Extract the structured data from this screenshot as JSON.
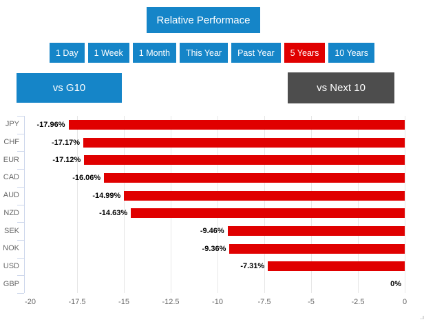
{
  "header": {
    "title": "Relative Performace",
    "tabs": [
      {
        "label": "1 Day",
        "selected": false
      },
      {
        "label": "1 Week",
        "selected": false
      },
      {
        "label": "1 Month",
        "selected": false
      },
      {
        "label": "This Year",
        "selected": false
      },
      {
        "label": "Past Year",
        "selected": false
      },
      {
        "label": "5 Years",
        "selected": true
      },
      {
        "label": "10 Years",
        "selected": false
      }
    ],
    "toggles": [
      {
        "label": "vs G10",
        "selected": true
      },
      {
        "label": "vs Next 10",
        "selected": false
      }
    ]
  },
  "colors": {
    "accent_blue": "#1585c8",
    "selected_red": "#e00000",
    "bar_red": "#e00000",
    "dark_gray": "#4d4d4d",
    "axis_line": "#ccd6eb",
    "gridline": "#e6e6e6",
    "label_gray": "#666666",
    "data_label_black": "#000000"
  },
  "chart_data": {
    "type": "bar",
    "orientation": "horizontal",
    "title": "Relative Performace",
    "categories": [
      "JPY",
      "CHF",
      "EUR",
      "CAD",
      "AUD",
      "NZD",
      "SEK",
      "NOK",
      "USD",
      "GBP"
    ],
    "values": [
      -17.96,
      -17.17,
      -17.12,
      -16.06,
      -14.99,
      -14.63,
      -9.46,
      -9.36,
      -7.31,
      0
    ],
    "data_labels": [
      "-17.96%",
      "-17.17%",
      "-17.12%",
      "-16.06%",
      "-14.99%",
      "-14.63%",
      "-9.46%",
      "-9.36%",
      "-7.31%",
      "0%"
    ],
    "xlabel": "",
    "ylabel": "",
    "xlim": [
      -20.3,
      0
    ],
    "x_ticks": [
      -20,
      -17.5,
      -15,
      -12.5,
      -10,
      -7.5,
      -5,
      -2.5,
      0
    ],
    "x_tick_labels": [
      "-20",
      "-17.5",
      "-15",
      "-12.5",
      "-10",
      "-7.5",
      "-5",
      "-2.5",
      "0"
    ],
    "grid": true,
    "legend": "none",
    "bar_color": "#e00000"
  }
}
